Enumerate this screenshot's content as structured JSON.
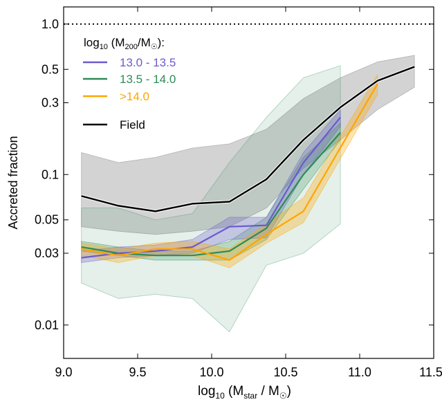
{
  "chart_data": {
    "type": "line",
    "xlabel": {
      "prefix": "log",
      "base": "10",
      "open": " (M",
      "sub": "star",
      "mid": " / M",
      "sunsym": "☉",
      "close": ")"
    },
    "ylabel": "Accreted fraction",
    "xlim": [
      9.0,
      11.5
    ],
    "ylim": [
      0.006,
      1.3
    ],
    "yscale": "log",
    "xticks": [
      9.0,
      9.5,
      10.0,
      10.5,
      11.0,
      11.5
    ],
    "xtick_labels": [
      "9.0",
      "9.5",
      "10.0",
      "10.5",
      "11.0",
      "11.5"
    ],
    "yticks": [
      0.01,
      0.03,
      0.05,
      0.1,
      0.3,
      0.5,
      1.0
    ],
    "ytick_labels": [
      "0.01",
      "0.03",
      "0.05",
      "0.1",
      "0.3",
      "0.5",
      "1.0"
    ],
    "reference_line": {
      "y": 1.0,
      "style": "dotted",
      "color": "#000000"
    },
    "legend": {
      "position": "top-left",
      "title": {
        "prefix": "log",
        "base": "10",
        "open": " (M",
        "sub": "200",
        "mid": "/M",
        "sunsym": "☉",
        "close": "):"
      },
      "entries": [
        {
          "label": "13.0 - 13.5",
          "color": "#6a5acd"
        },
        {
          "label": "13.5 - 14.0",
          "color": "#2e8b57"
        },
        {
          "label": ">14.0",
          "color": "#ffa500"
        },
        {
          "label": "Field",
          "color": "#000000"
        }
      ]
    },
    "series": [
      {
        "name": "Field",
        "color": "#000000",
        "fill": "#9e9e9e",
        "fill_opacity": 0.45,
        "halo": true,
        "x": [
          9.12,
          9.37,
          9.62,
          9.87,
          10.12,
          10.37,
          10.62,
          10.87,
          11.12,
          11.37
        ],
        "y": [
          0.072,
          0.062,
          0.057,
          0.064,
          0.066,
          0.093,
          0.17,
          0.28,
          0.42,
          0.52
        ],
        "lower": [
          0.045,
          0.042,
          0.04,
          0.042,
          0.045,
          0.06,
          0.11,
          0.17,
          0.27,
          0.38
        ],
        "upper": [
          0.14,
          0.12,
          0.13,
          0.15,
          0.16,
          0.2,
          0.32,
          0.44,
          0.56,
          0.62
        ]
      },
      {
        "name": "13.5 - 14.0",
        "color": "#2e8b57",
        "fill": "#2e8b57",
        "fill_opacity": 0.13,
        "halo": false,
        "x": [
          9.12,
          9.37,
          9.62,
          9.87,
          10.12,
          10.37,
          10.62,
          10.87
        ],
        "y": [
          0.033,
          0.03,
          0.029,
          0.029,
          0.031,
          0.044,
          0.1,
          0.19
        ],
        "lower": [
          0.019,
          0.015,
          0.016,
          0.015,
          0.009,
          0.025,
          0.03,
          0.047
        ],
        "upper": [
          0.06,
          0.06,
          0.05,
          0.055,
          0.12,
          0.24,
          0.44,
          0.53
        ]
      },
      {
        "name": "13.5 - 14.0 (inner)",
        "color": "#2e8b57",
        "fill": "#2e8b57",
        "fill_opacity": 0.25,
        "halo": false,
        "band_only": true,
        "x": [
          9.12,
          9.37,
          9.62,
          9.87,
          10.12,
          10.37,
          10.62,
          10.87
        ],
        "lower": [
          0.031,
          0.029,
          0.027,
          0.027,
          0.027,
          0.037,
          0.08,
          0.17
        ],
        "upper": [
          0.036,
          0.033,
          0.031,
          0.031,
          0.036,
          0.052,
          0.13,
          0.22
        ]
      },
      {
        "name": "13.0 - 13.5",
        "color": "#6a5acd",
        "fill": "#6a5acd",
        "fill_opacity": 0.28,
        "halo": false,
        "x": [
          9.12,
          9.37,
          9.62,
          9.87,
          10.12,
          10.37,
          10.62,
          10.87
        ],
        "y": [
          0.028,
          0.03,
          0.031,
          0.033,
          0.045,
          0.046,
          0.12,
          0.24
        ],
        "lower": [
          0.026,
          0.028,
          0.029,
          0.03,
          0.037,
          0.038,
          0.1,
          0.21
        ],
        "upper": [
          0.031,
          0.033,
          0.034,
          0.037,
          0.052,
          0.052,
          0.14,
          0.27
        ]
      },
      {
        "name": ">14.0",
        "color": "#ffa500",
        "fill": "#ffa500",
        "fill_opacity": 0.3,
        "halo": false,
        "x": [
          9.12,
          9.37,
          9.62,
          9.87,
          10.12,
          10.37,
          10.62,
          11.12
        ],
        "y": [
          0.032,
          0.029,
          0.032,
          0.032,
          0.027,
          0.04,
          0.057,
          0.4
        ],
        "lower": [
          0.029,
          0.026,
          0.029,
          0.029,
          0.024,
          0.035,
          0.048,
          0.34
        ],
        "upper": [
          0.035,
          0.032,
          0.035,
          0.036,
          0.032,
          0.047,
          0.07,
          0.46
        ]
      }
    ]
  }
}
